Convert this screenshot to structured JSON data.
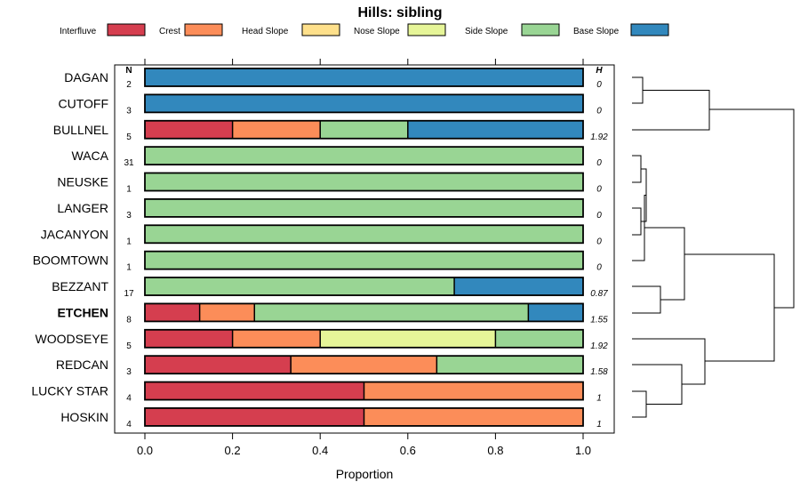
{
  "chart_data": {
    "type": "bar",
    "orientation": "horizontal",
    "stacked": true,
    "title": "Hills: sibling",
    "xlabel": "Proportion",
    "xlim": [
      0,
      1
    ],
    "x_ticks": [
      "0.0",
      "0.2",
      "0.4",
      "0.6",
      "0.8",
      "1.0"
    ],
    "n_header": "N",
    "h_header": "H",
    "highlight": "ETCHEN",
    "series": [
      {
        "name": "Interfluve",
        "color": "#d53e4f"
      },
      {
        "name": "Crest",
        "color": "#fc8d59"
      },
      {
        "name": "Head Slope",
        "color": "#fee08b"
      },
      {
        "name": "Nose Slope",
        "color": "#e6f598"
      },
      {
        "name": "Side Slope",
        "color": "#99d594"
      },
      {
        "name": "Base Slope",
        "color": "#3288bd"
      }
    ],
    "categories": [
      "DAGAN",
      "CUTOFF",
      "BULLNEL",
      "WACA",
      "NEUSKE",
      "LANGER",
      "JACANYON",
      "BOOMTOWN",
      "BEZZANT",
      "ETCHEN",
      "WOODSEYE",
      "REDCAN",
      "LUCKY STAR",
      "HOSKIN"
    ],
    "n_values": [
      "2",
      "3",
      "5",
      "31",
      "1",
      "3",
      "1",
      "1",
      "17",
      "8",
      "5",
      "3",
      "4",
      "4"
    ],
    "h_values": [
      "0",
      "0",
      "1.92",
      "0",
      "0",
      "0",
      "0",
      "0",
      "0.87",
      "1.55",
      "1.92",
      "1.58",
      "1",
      "1"
    ],
    "proportions": [
      [
        0,
        0,
        0,
        0,
        0,
        1
      ],
      [
        0,
        0,
        0,
        0,
        0,
        1
      ],
      [
        0.2,
        0.2,
        0,
        0,
        0.2,
        0.4
      ],
      [
        0,
        0,
        0,
        0,
        1,
        0
      ],
      [
        0,
        0,
        0,
        0,
        1,
        0
      ],
      [
        0,
        0,
        0,
        0,
        1,
        0
      ],
      [
        0,
        0,
        0,
        0,
        1,
        0
      ],
      [
        0,
        0,
        0,
        0,
        1,
        0
      ],
      [
        0,
        0,
        0,
        0,
        0.706,
        0.294
      ],
      [
        0.125,
        0.125,
        0,
        0,
        0.625,
        0.125
      ],
      [
        0.2,
        0.2,
        0,
        0.4,
        0.2,
        0
      ],
      [
        0.333,
        0.333,
        0,
        0,
        0.333,
        0
      ],
      [
        0.5,
        0.5,
        0,
        0,
        0,
        0
      ],
      [
        0.5,
        0.5,
        0,
        0,
        0,
        0
      ]
    ]
  }
}
